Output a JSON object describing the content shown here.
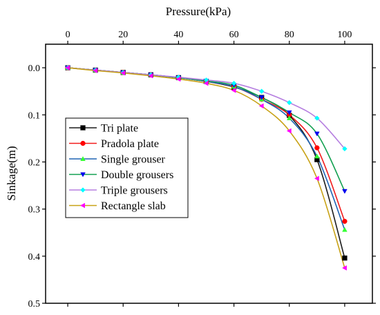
{
  "chart_data": {
    "type": "line",
    "title": "",
    "xlabel": "Pressure(kPa)",
    "ylabel": "Sinkage(m)",
    "x_axis_position": "top",
    "y_axis_reversed": true,
    "xlim": [
      -8,
      110
    ],
    "ylim": [
      0.5,
      -0.05
    ],
    "xticks": [
      0,
      20,
      40,
      60,
      80,
      100
    ],
    "yticks": [
      0.0,
      0.1,
      0.2,
      0.3,
      0.4,
      0.5
    ],
    "xtick_labels": [
      "0",
      "20",
      "40",
      "60",
      "80",
      "100"
    ],
    "ytick_labels": [
      "0.0",
      "0.1",
      "0.2",
      "0.3",
      "0.4",
      "0.5"
    ],
    "grid": false,
    "legend_position": "left-middle",
    "x": [
      0,
      10,
      20,
      30,
      40,
      50,
      60,
      70,
      80,
      90,
      100
    ],
    "series": [
      {
        "name": "Tri plate",
        "color": "#1a1a1a",
        "marker": "square",
        "values": [
          0.0,
          0.005,
          0.01,
          0.015,
          0.021,
          0.029,
          0.041,
          0.063,
          0.101,
          0.195,
          0.404
        ]
      },
      {
        "name": "Pradola plate",
        "color": "#f21b1b",
        "marker": "circle",
        "values": [
          0.0,
          0.005,
          0.01,
          0.015,
          0.021,
          0.029,
          0.04,
          0.067,
          0.1,
          0.17,
          0.326
        ]
      },
      {
        "name": "Single grouser",
        "color": "#1f64b4",
        "marker": "triangle-up",
        "values": [
          0.0,
          0.005,
          0.01,
          0.015,
          0.021,
          0.029,
          0.04,
          0.067,
          0.107,
          0.188,
          0.344
        ]
      },
      {
        "name": "Double grousers",
        "color": "#11a050",
        "marker": "triangle-down",
        "values": [
          0.0,
          0.005,
          0.01,
          0.015,
          0.021,
          0.028,
          0.037,
          0.063,
          0.095,
          0.14,
          0.262
        ]
      },
      {
        "name": "Triple grousers",
        "color": "#b57ee0",
        "marker": "diamond",
        "values": [
          0.0,
          0.005,
          0.01,
          0.015,
          0.02,
          0.026,
          0.033,
          0.05,
          0.074,
          0.107,
          0.172
        ]
      },
      {
        "name": "Rectangle slab",
        "color": "#c8a216",
        "marker": "triangle-left",
        "values": [
          0.0,
          0.006,
          0.011,
          0.017,
          0.024,
          0.033,
          0.048,
          0.081,
          0.134,
          0.235,
          0.425
        ]
      }
    ],
    "marker_colors": {
      "Tri plate": "#000000",
      "Pradola plate": "#ff0000",
      "Single grouser": "#33ff33",
      "Double grousers": "#0000ee",
      "Triple grousers": "#00ffff",
      "Rectangle slab": "#ff00ff"
    }
  }
}
